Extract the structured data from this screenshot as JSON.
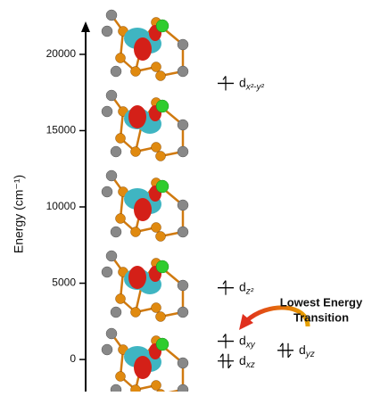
{
  "axis": {
    "label": "Energy (cm⁻¹)",
    "ylim": [
      -2100,
      22100
    ],
    "ticks": [
      0,
      5000,
      10000,
      15000,
      20000
    ]
  },
  "levels": [
    {
      "label": "d",
      "subscript": "x²-y²",
      "energy": 18100,
      "electrons": 1,
      "column": 0
    },
    {
      "label": "d",
      "subscript": "z²",
      "energy": 4700,
      "electrons": 1,
      "column": 0
    },
    {
      "label": "d",
      "subscript": "xy",
      "energy": 1200,
      "electrons": 1,
      "column": 0
    },
    {
      "label": "d",
      "subscript": "xz",
      "energy": -100,
      "electrons": 2,
      "column": 0
    },
    {
      "label": "d",
      "subscript": "yz",
      "energy": 600,
      "electrons": 2,
      "column": 1
    }
  ],
  "annotation": [
    "Lowest Energy",
    "Transition"
  ]
}
